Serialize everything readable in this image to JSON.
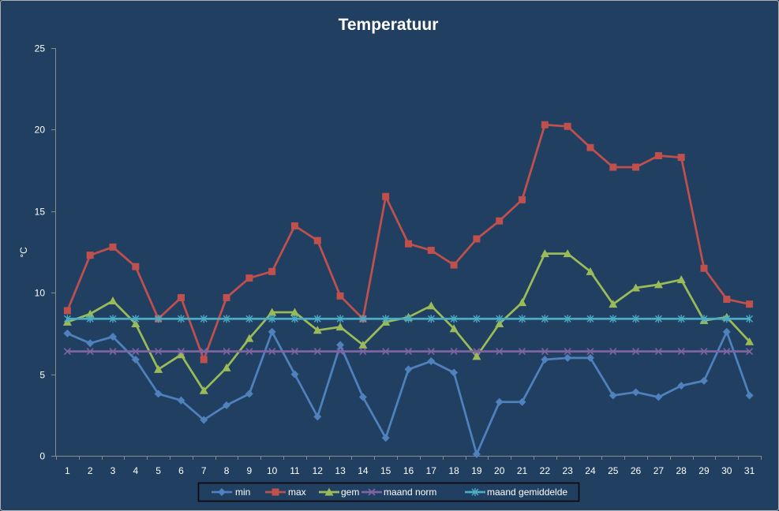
{
  "colors": {
    "background": "#203F61",
    "frame": "#B0B0B0",
    "axis": "#8A8A8A",
    "legend_border": "#000000"
  },
  "chart_data": {
    "type": "line",
    "title": "Temperatuur",
    "ylabel": "°C",
    "ylim": [
      0,
      25
    ],
    "yticks": [
      0,
      5,
      10,
      15,
      20,
      25
    ],
    "grid": false,
    "legend": "bottom",
    "categories": [
      "1",
      "2",
      "3",
      "4",
      "5",
      "6",
      "7",
      "8",
      "9",
      "10",
      "11",
      "12",
      "13",
      "14",
      "15",
      "16",
      "17",
      "18",
      "19",
      "20",
      "21",
      "22",
      "23",
      "24",
      "25",
      "26",
      "27",
      "28",
      "29",
      "30",
      "31"
    ],
    "series": [
      {
        "name": "min",
        "color": "#4F81BD",
        "marker": "diamond",
        "values": [
          7.5,
          6.9,
          7.3,
          5.9,
          3.8,
          3.4,
          2.2,
          3.1,
          3.8,
          7.6,
          5.0,
          2.4,
          6.8,
          3.6,
          1.1,
          5.3,
          5.8,
          5.1,
          0.1,
          3.3,
          3.3,
          5.9,
          6.0,
          6.0,
          3.7,
          3.9,
          3.6,
          4.3,
          4.6,
          7.6,
          3.7
        ]
      },
      {
        "name": "max",
        "color": "#C0504D",
        "marker": "square",
        "values": [
          8.9,
          12.3,
          12.8,
          11.6,
          8.4,
          9.7,
          5.9,
          9.7,
          10.9,
          11.3,
          14.1,
          13.2,
          9.8,
          8.4,
          15.9,
          13.0,
          12.6,
          11.7,
          13.3,
          14.4,
          15.7,
          20.3,
          20.2,
          18.9,
          17.7,
          17.7,
          18.4,
          18.3,
          11.5,
          9.6,
          9.3
        ]
      },
      {
        "name": "gem",
        "color": "#9BBB59",
        "marker": "triangle",
        "values": [
          8.2,
          8.7,
          9.5,
          8.1,
          5.3,
          6.2,
          4.0,
          5.4,
          7.2,
          8.8,
          8.8,
          7.7,
          7.9,
          6.8,
          8.2,
          8.5,
          9.2,
          7.8,
          6.1,
          8.1,
          9.4,
          12.4,
          12.4,
          11.3,
          9.3,
          10.3,
          10.5,
          10.8,
          8.3,
          8.5,
          7.0
        ]
      },
      {
        "name": "maand norm",
        "color": "#8064A2",
        "marker": "x",
        "values": [
          6.4,
          6.4,
          6.4,
          6.4,
          6.4,
          6.4,
          6.4,
          6.4,
          6.4,
          6.4,
          6.4,
          6.4,
          6.4,
          6.4,
          6.4,
          6.4,
          6.4,
          6.4,
          6.4,
          6.4,
          6.4,
          6.4,
          6.4,
          6.4,
          6.4,
          6.4,
          6.4,
          6.4,
          6.4,
          6.4,
          6.4
        ]
      },
      {
        "name": "maand gemiddelde",
        "color": "#4BACC6",
        "marker": "asterisk",
        "values": [
          8.4,
          8.4,
          8.4,
          8.4,
          8.4,
          8.4,
          8.4,
          8.4,
          8.4,
          8.4,
          8.4,
          8.4,
          8.4,
          8.4,
          8.4,
          8.4,
          8.4,
          8.4,
          8.4,
          8.4,
          8.4,
          8.4,
          8.4,
          8.4,
          8.4,
          8.4,
          8.4,
          8.4,
          8.4,
          8.4,
          8.4
        ]
      }
    ]
  }
}
